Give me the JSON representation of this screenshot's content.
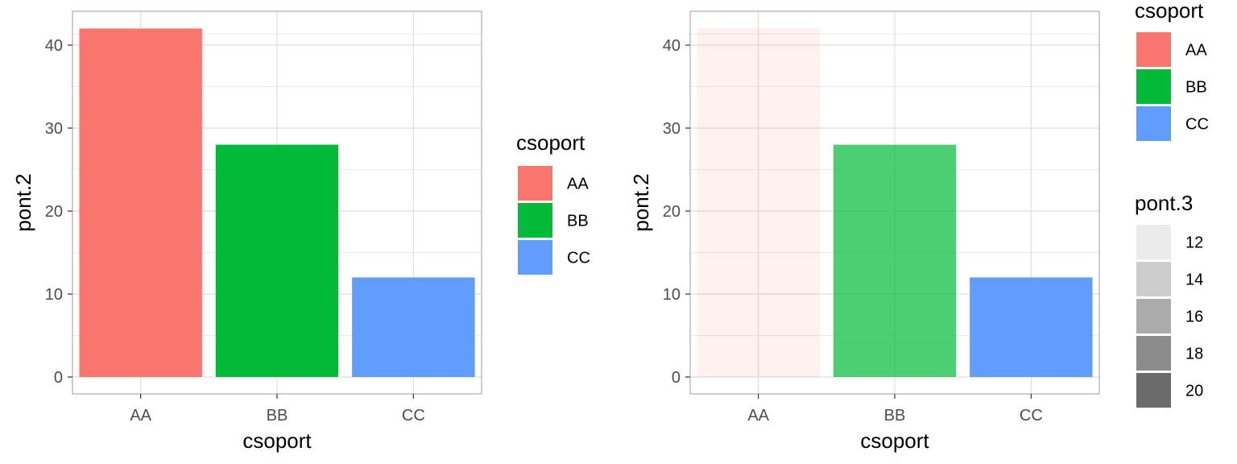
{
  "chart_data": [
    {
      "type": "bar",
      "categories": [
        "AA",
        "BB",
        "CC"
      ],
      "values": [
        42,
        28,
        12
      ],
      "fill_by": "csoport",
      "colors": [
        "#F8766D",
        "#00BA38",
        "#619CFF"
      ],
      "alphas": [
        1,
        1,
        1
      ],
      "xlabel": "csoport",
      "ylabel": "pont.2",
      "ylim": [
        0,
        44
      ],
      "yticks": [
        0,
        10,
        20,
        30,
        40
      ],
      "grid": true,
      "legend_placement": "right",
      "legends": [
        {
          "title": "csoport",
          "entries": [
            "AA",
            "BB",
            "CC"
          ],
          "colors": [
            "#F8766D",
            "#00BA38",
            "#619CFF"
          ]
        }
      ]
    },
    {
      "type": "bar",
      "categories": [
        "AA",
        "BB",
        "CC"
      ],
      "values": [
        42,
        28,
        12
      ],
      "fill_by": "csoport",
      "alpha_by": "pont.3",
      "pont3_values": [
        12,
        16,
        20
      ],
      "colors": [
        "#F8766D",
        "#00BA38",
        "#619CFF"
      ],
      "alphas": [
        0.1,
        0.7,
        1.0
      ],
      "xlabel": "csoport",
      "ylabel": "pont.2",
      "ylim": [
        0,
        44
      ],
      "yticks": [
        0,
        10,
        20,
        30,
        40
      ],
      "grid": true,
      "legend_placement": "right",
      "legends": [
        {
          "title": "csoport",
          "entries": [
            "AA",
            "BB",
            "CC"
          ],
          "colors": [
            "#F8766D",
            "#00BA38",
            "#619CFF"
          ]
        },
        {
          "title": "pont.3",
          "entries": [
            "12",
            "14",
            "16",
            "18",
            "20"
          ],
          "colors": [
            "#ebebeb",
            "#cdcdcd",
            "#ababab",
            "#8c8c8c",
            "#6b6b6b"
          ]
        }
      ]
    }
  ]
}
